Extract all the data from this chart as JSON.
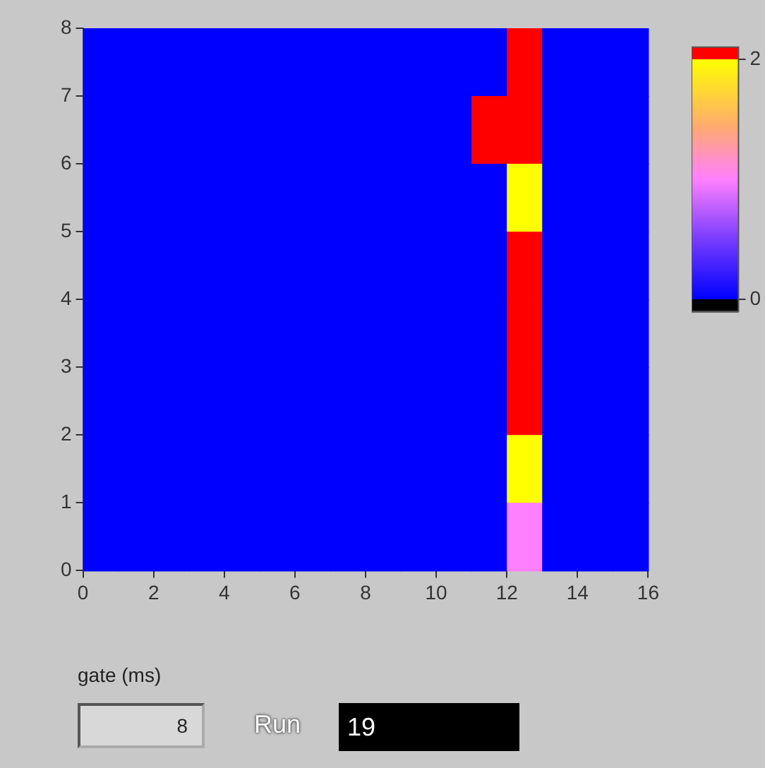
{
  "chart_data": {
    "type": "heatmap",
    "x": [
      0.5,
      1.5,
      2.5,
      3.5,
      4.5,
      5.5,
      6.5,
      7.5,
      8.5,
      9.5,
      10.5,
      11.5,
      12.5,
      13.5,
      14.5,
      15.5
    ],
    "y": [
      7.5,
      6.5,
      5.5,
      4.5,
      3.5,
      2.5,
      1.5,
      0.5
    ],
    "cells": [
      [
        0,
        0,
        0,
        0,
        0,
        0,
        0,
        0,
        0,
        0,
        0,
        0,
        2.1,
        0,
        0,
        0
      ],
      [
        0,
        0,
        0,
        0,
        0,
        0,
        0,
        0,
        0,
        0,
        0,
        2.1,
        2.1,
        0,
        0,
        0
      ],
      [
        0,
        0,
        0,
        0,
        0,
        0,
        0,
        0,
        0,
        0,
        0,
        0,
        2,
        0,
        0,
        0
      ],
      [
        0,
        0,
        0,
        0,
        0,
        0,
        0,
        0,
        0,
        0,
        0,
        0,
        2.1,
        0,
        0,
        0
      ],
      [
        0,
        0,
        0,
        0,
        0,
        0,
        0,
        0,
        0,
        0,
        0,
        0,
        2.1,
        0,
        0,
        0
      ],
      [
        0,
        0,
        0,
        0,
        0,
        0,
        0,
        0,
        0,
        0,
        0,
        0,
        2.1,
        0,
        0,
        0
      ],
      [
        0,
        0,
        0,
        0,
        0,
        0,
        0,
        0,
        0,
        0,
        0,
        0,
        2,
        0,
        0,
        0
      ],
      [
        0,
        0,
        0,
        0,
        0,
        0,
        0,
        0,
        0,
        0,
        0,
        0,
        1,
        0,
        0,
        0
      ]
    ],
    "xlim": [
      0,
      16
    ],
    "xticks": [
      0,
      2,
      4,
      6,
      8,
      10,
      12,
      14,
      16
    ],
    "ylim": [
      0,
      8
    ],
    "yticks": [
      0,
      1,
      2,
      3,
      4,
      5,
      6,
      7,
      8
    ],
    "clim": [
      -0.1,
      2.1
    ],
    "cticks": [
      0,
      2
    ],
    "annotations": [
      "gate (ms)",
      "8",
      "Run",
      "19"
    ]
  }
}
